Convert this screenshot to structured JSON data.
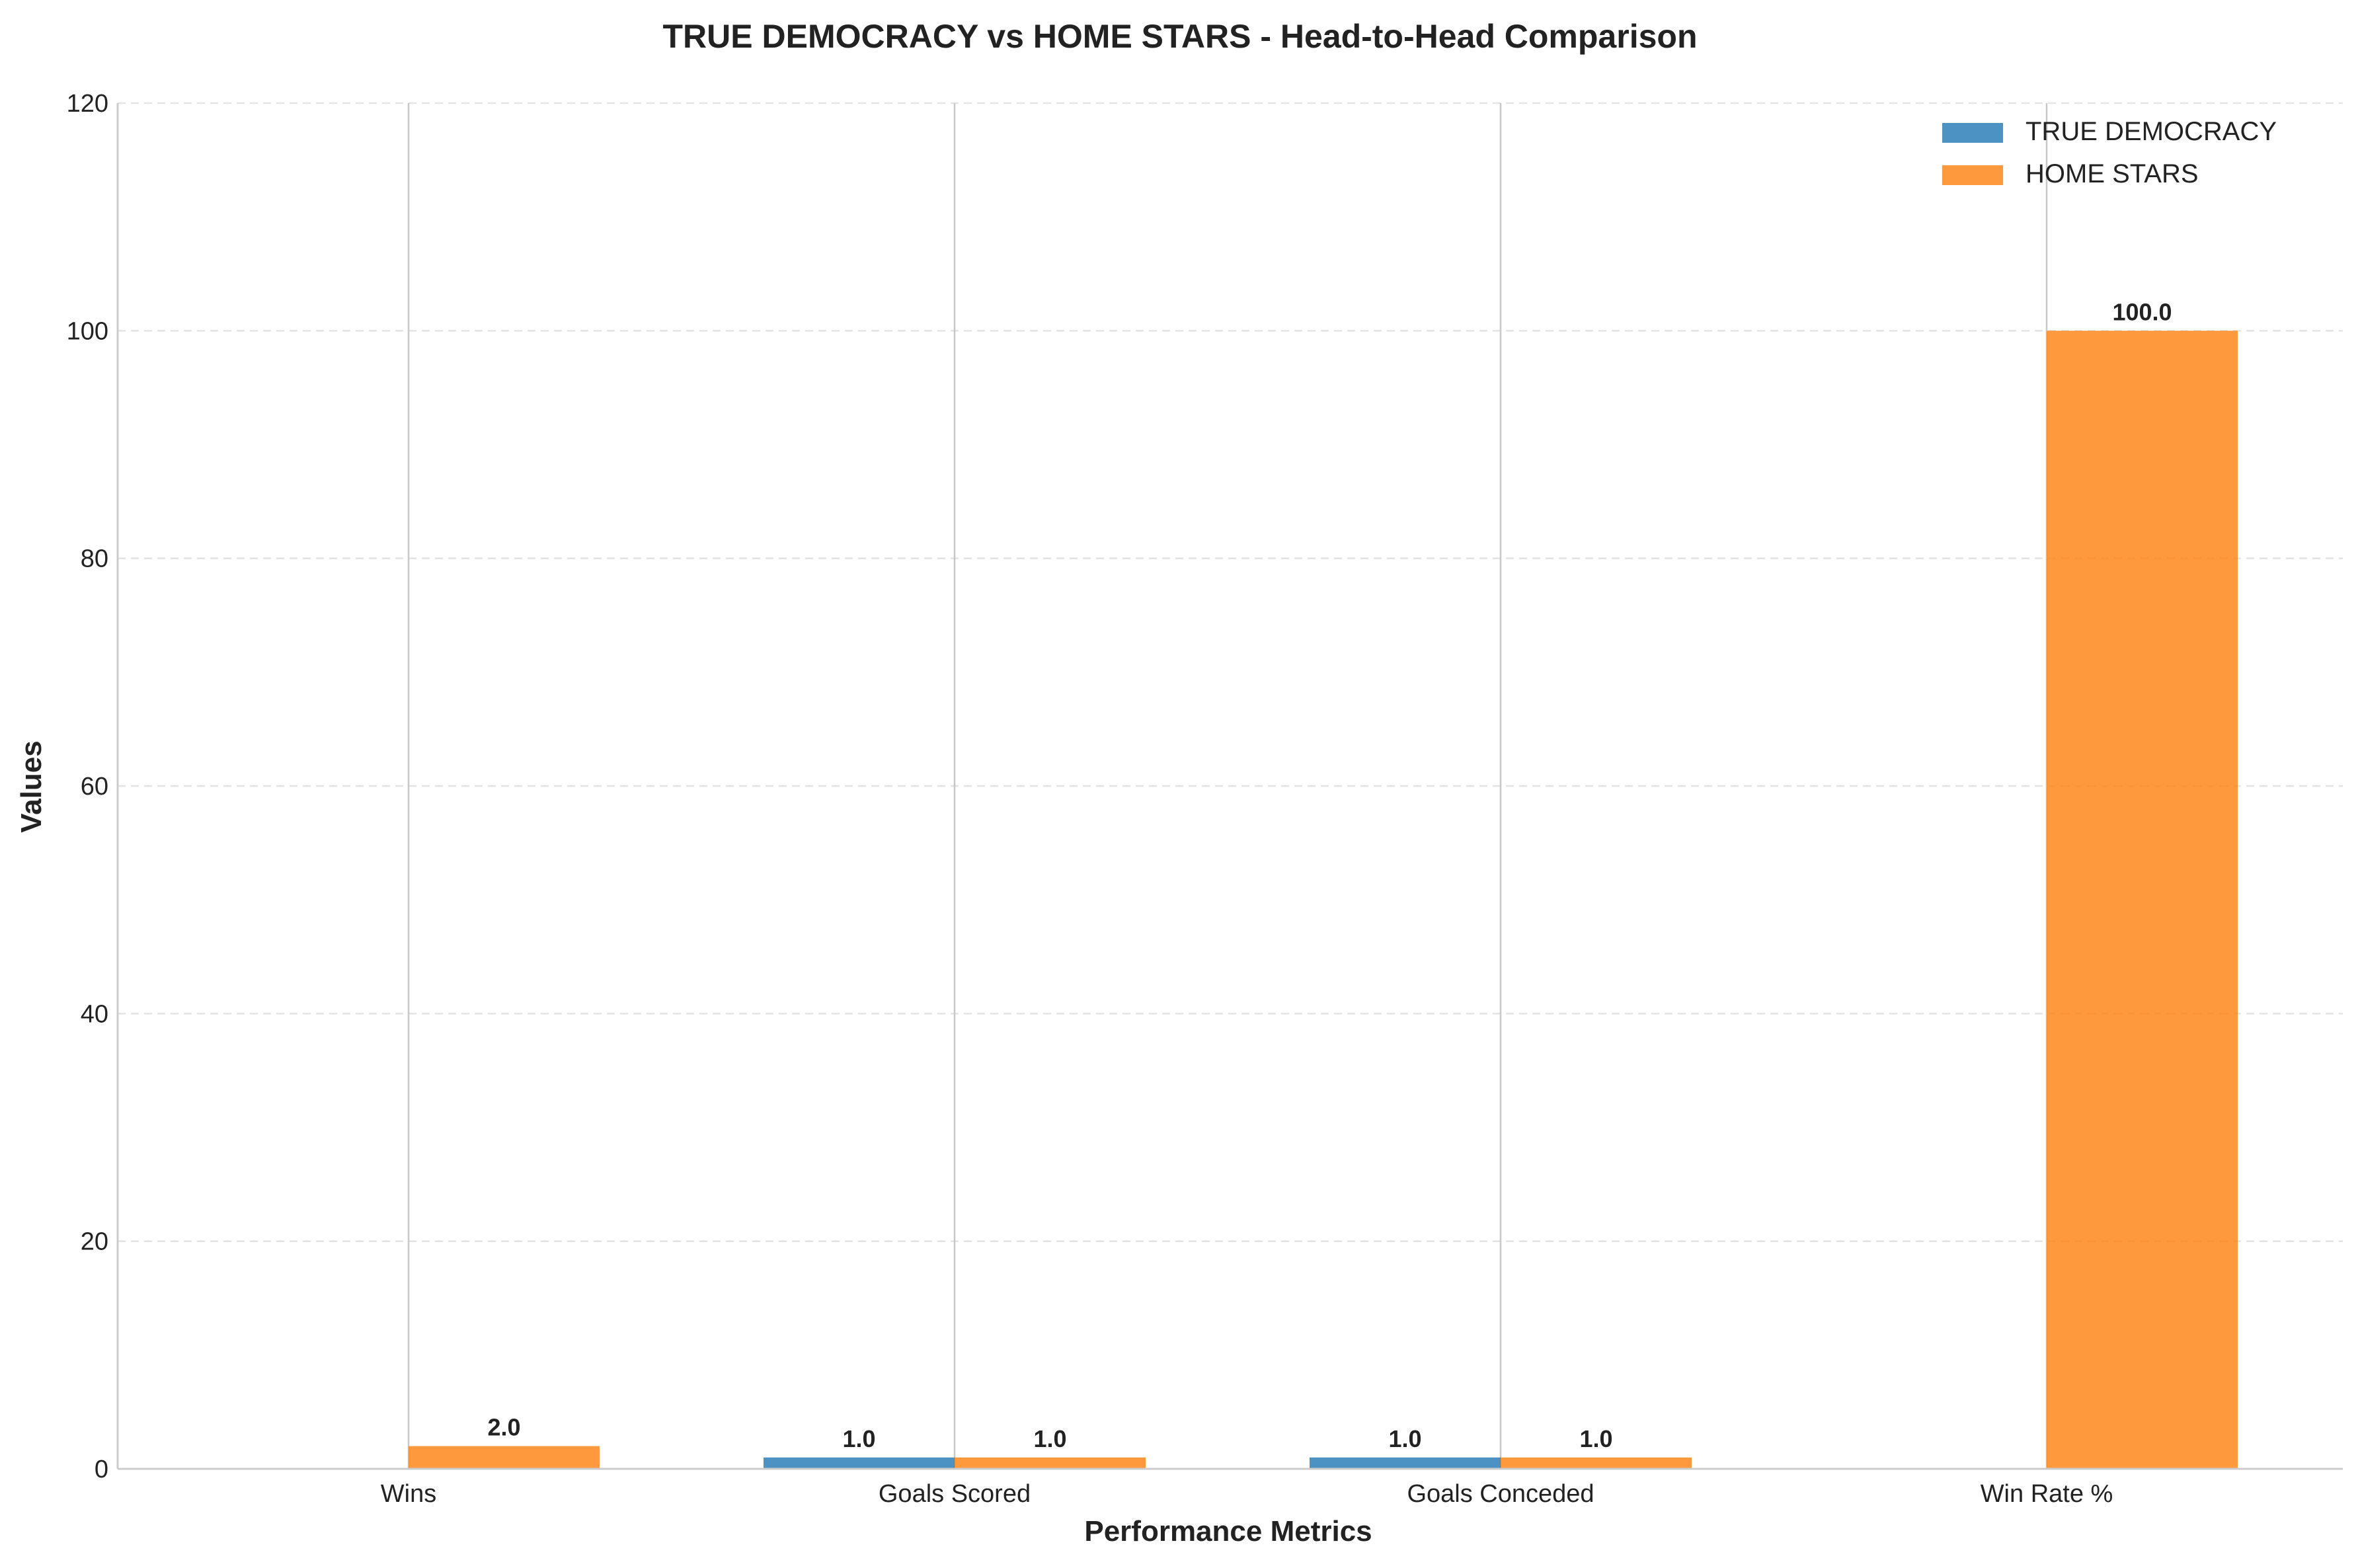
{
  "chart_data": {
    "type": "bar",
    "title": "TRUE DEMOCRACY vs HOME STARS - Head-to-Head Comparison",
    "xlabel": "Performance Metrics",
    "ylabel": "Values",
    "categories": [
      "Wins",
      "Goals Scored",
      "Goals Conceded",
      "Win Rate %"
    ],
    "series": [
      {
        "name": "TRUE DEMOCRACY",
        "values": [
          0,
          1,
          1,
          0
        ],
        "labels": [
          "",
          "1.0",
          "1.0",
          ""
        ],
        "color": "#1f77b4"
      },
      {
        "name": "HOME STARS",
        "values": [
          2,
          1,
          1,
          100
        ],
        "labels": [
          "2.0",
          "1.0",
          "1.0",
          "100.0"
        ],
        "color": "#ff7f0e"
      }
    ],
    "ylim": [
      0,
      120
    ],
    "yticks": [
      0,
      20,
      40,
      60,
      80,
      100,
      120
    ],
    "grid": "horizontal dashed",
    "legend_position": "top-right"
  }
}
